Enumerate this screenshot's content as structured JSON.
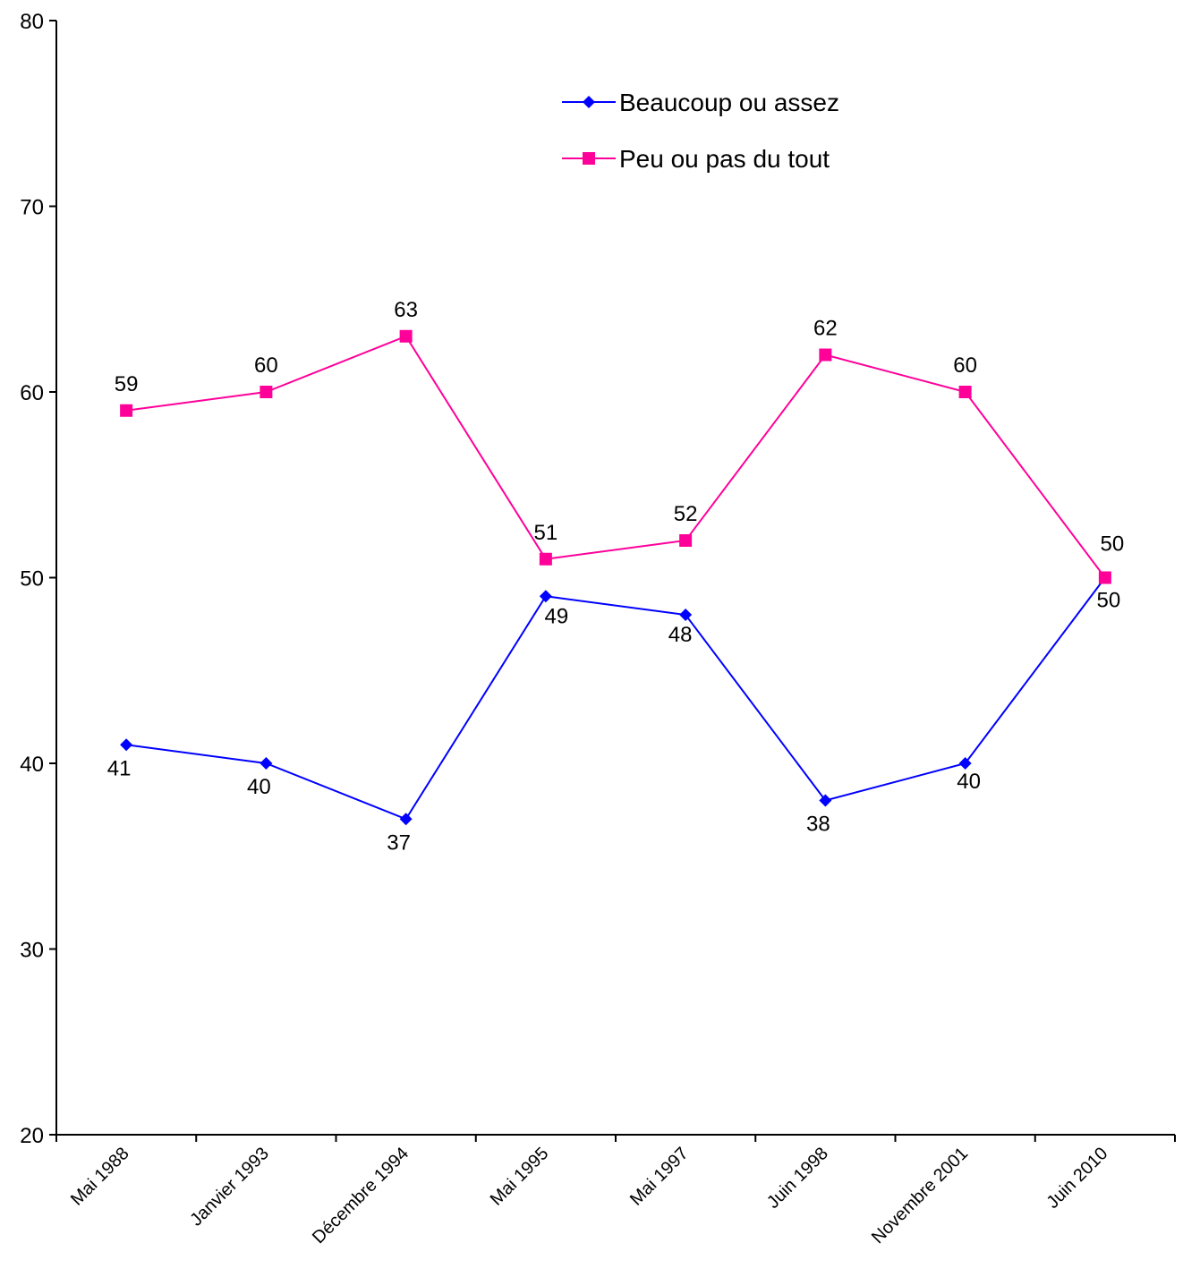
{
  "chart_data": {
    "type": "line",
    "categories": [
      "Mai 1988",
      "Janvier 1993",
      "Décembre 1994",
      "Mai 1995",
      "Mai 1997",
      "Juin 1998",
      "Novembre 2001",
      "Juin 2010"
    ],
    "series": [
      {
        "name": "Beaucoup ou assez",
        "values": [
          41,
          40,
          37,
          49,
          48,
          38,
          40,
          50
        ],
        "color": "#0000FF",
        "marker": "diamond"
      },
      {
        "name": "Peu ou pas du tout",
        "values": [
          59,
          60,
          63,
          51,
          52,
          62,
          60,
          50
        ],
        "color": "#FF0099",
        "marker": "square"
      }
    ],
    "ylim": [
      20,
      80
    ],
    "yticks": [
      20,
      30,
      40,
      50,
      60,
      70,
      80
    ],
    "grid": false,
    "legend": "top-right"
  }
}
